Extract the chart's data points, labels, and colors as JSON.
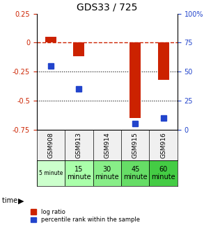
{
  "title": "GDS33 / 725",
  "samples": [
    "GSM908",
    "GSM913",
    "GSM914",
    "GSM915",
    "GSM916"
  ],
  "time_labels": [
    "5 minute",
    "15\nminute",
    "30\nminute",
    "45\nminute",
    "60\nminute"
  ],
  "time_colors": [
    "#ccffcc",
    "#aaffaa",
    "#88ee88",
    "#66dd66",
    "#44cc44"
  ],
  "log_ratios": [
    0.05,
    -0.12,
    null,
    -0.65,
    -0.32
  ],
  "percentile_ranks": [
    55,
    35,
    null,
    5,
    10
  ],
  "ylim_left": [
    -0.75,
    0.25
  ],
  "ylim_right": [
    0,
    100
  ],
  "yticks_left": [
    0.25,
    0,
    -0.25,
    -0.5,
    -0.75
  ],
  "yticks_right": [
    100,
    75,
    50,
    25,
    0
  ],
  "bar_color": "#cc2200",
  "square_color": "#2244cc",
  "bar_width": 0.4,
  "hline_y": 0,
  "dotted_lines": [
    -0.25,
    -0.5
  ],
  "legend_items": [
    "log ratio",
    "percentile rank within the sample"
  ],
  "background_color": "#f0f0f0",
  "plot_bg": "#ffffff"
}
